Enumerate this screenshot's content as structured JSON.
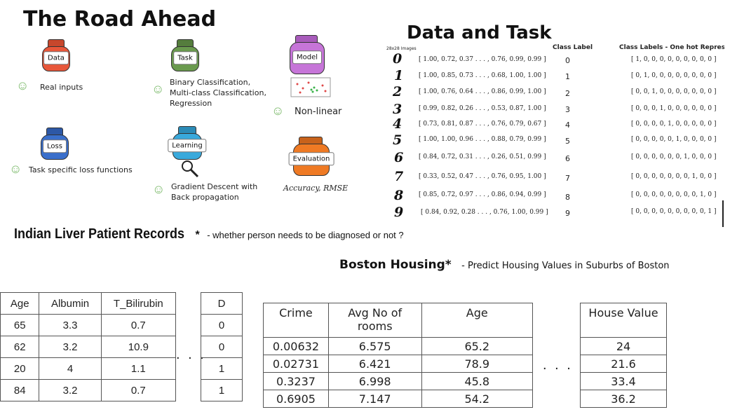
{
  "road_ahead": {
    "title": "The Road Ahead",
    "jars": {
      "data": {
        "label": "Data",
        "desc": "Real inputs"
      },
      "task": {
        "label": "Task",
        "desc": [
          "Binary Classification,",
          "Multi-class Classification,",
          "Regression"
        ]
      },
      "model": {
        "label": "Model",
        "desc": "Non-linear"
      },
      "loss": {
        "label": "Loss",
        "desc": "Task specific loss functions"
      },
      "learning": {
        "label": "Learning",
        "desc": [
          "Gradient Descent with",
          "Back propagation"
        ]
      },
      "evaluation": {
        "label": "Evaluation",
        "desc": "Accuracy, RMSE"
      }
    },
    "colors": {
      "data": "#e8573a",
      "task": "#6a9a4e",
      "model": "#c675d8",
      "loss": "#3a6fcb",
      "learning": "#39a9dc",
      "evaluation": "#ef7a24",
      "smile": "#7cba6b"
    }
  },
  "data_task": {
    "title": "Data and Task",
    "col_images": "28x28 Images",
    "col_label": "Class Label",
    "col_onehot": "Class Labels - One hot Representa",
    "rows": [
      {
        "digit": "0",
        "vec": "[ 1.00, 0.72, 0.37 . . . , 0.76, 0.99, 0.99 ]",
        "label": "0",
        "onehot": "[ 1, 0, 0, 0, 0, 0, 0, 0, 0, 0 ]"
      },
      {
        "digit": "1",
        "vec": "[ 1.00, 0.85, 0.73 . . . , 0.68, 1.00, 1.00 ]",
        "label": "1",
        "onehot": "[ 0, 1, 0, 0, 0, 0, 0, 0, 0, 0 ]"
      },
      {
        "digit": "2",
        "vec": "[ 1.00, 0.76, 0.64 . . . , 0.86, 0.99, 1.00 ]",
        "label": "2",
        "onehot": "[ 0, 0, 1, 0, 0, 0, 0, 0, 0, 0 ]"
      },
      {
        "digit": "3",
        "vec": "[ 0.99, 0.82, 0.26 . . . , 0.53, 0.87, 1.00 ]",
        "label": "3",
        "onehot": "[ 0, 0, 0, 1, 0, 0, 0, 0, 0, 0 ]"
      },
      {
        "digit": "4",
        "vec": "[ 0.73, 0.81, 0.87 . . . , 0.76, 0.79, 0.67 ]",
        "label": "4",
        "onehot": "[ 0, 0, 0, 0, 1, 0, 0, 0, 0, 0 ]"
      },
      {
        "digit": "5",
        "vec": "[ 1.00, 1.00, 0.96 . . . , 0.88, 0.79, 0.99 ]",
        "label": "5",
        "onehot": "[ 0, 0, 0, 0, 0, 1, 0, 0, 0, 0 ]"
      },
      {
        "digit": "6",
        "vec": "[ 0.84, 0.72, 0.31 . . . , 0.26, 0.51, 0.99 ]",
        "label": "6",
        "onehot": "[ 0, 0, 0, 0, 0, 0, 1, 0, 0, 0 ]"
      },
      {
        "digit": "7",
        "vec": "[ 0.33, 0.52, 0.47 . . . , 0.76, 0.95, 1.00 ]",
        "label": "7",
        "onehot": "[ 0, 0, 0, 0, 0, 0, 0, 1, 0, 0 ]"
      },
      {
        "digit": "8",
        "vec": "[ 0.85, 0.72, 0.97 . . . , 0.86, 0.94, 0.99 ]",
        "label": "8",
        "onehot": "[ 0, 0, 0, 0, 0, 0, 0, 0, 1, 0 ]"
      },
      {
        "digit": "9",
        "vec": "[ 0.84, 0.92, 0.28 . . . , 0.76, 1.00, 0.99 ]",
        "label": "9",
        "onehot": "[ 0, 0, 0, 0, 0, 0, 0, 0, 0, 1 ]"
      }
    ]
  },
  "liver": {
    "title": "Indian Liver Patient Records",
    "asterisk": "*",
    "subtitle": "-  whether person needs to be diagnosed or not ?",
    "headers": [
      "Age",
      "Albumin",
      "T_Bilirubin"
    ],
    "rows": [
      [
        "65",
        "3.3",
        "0.7"
      ],
      [
        "62",
        "3.2",
        "10.9"
      ],
      [
        "20",
        "4",
        "1.1"
      ],
      [
        "84",
        "3.2",
        "0.7"
      ]
    ],
    "target_header": "D",
    "target": [
      "0",
      "0",
      "1",
      "1"
    ],
    "ellipsis": ". . ."
  },
  "boston": {
    "title": "Boston Housing*",
    "subtitle": "- Predict Housing Values in Suburbs of Boston",
    "headers": [
      "Crime",
      "Avg No of rooms",
      "Age"
    ],
    "rows": [
      [
        "0.00632",
        "6.575",
        "65.2"
      ],
      [
        "0.02731",
        "6.421",
        "78.9"
      ],
      [
        "0.3237",
        "6.998",
        "45.8"
      ],
      [
        "0.6905",
        "7.147",
        "54.2"
      ]
    ],
    "target_header": "House Value",
    "target": [
      "24",
      "21.6",
      "33.4",
      "36.2"
    ],
    "ellipsis": ". . ."
  }
}
